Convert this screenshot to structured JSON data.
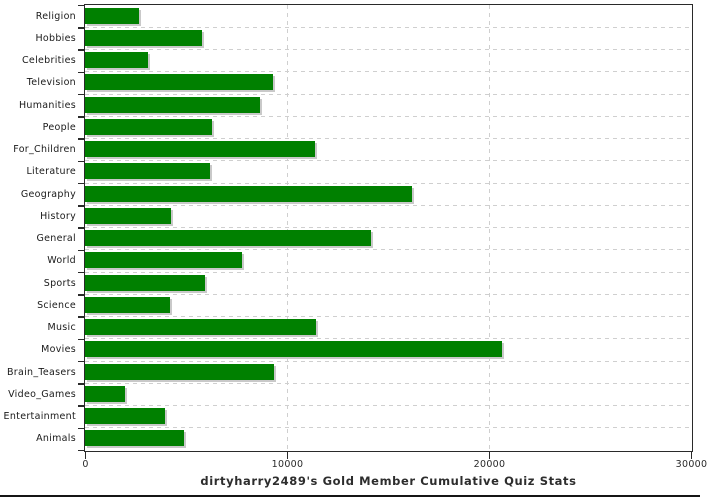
{
  "chart_data": {
    "type": "bar",
    "orientation": "horizontal",
    "title": "dirtyharry2489's Gold Member Cumulative Quiz Stats",
    "categories": [
      "Religion",
      "Hobbies",
      "Celebrities",
      "Television",
      "Humanities",
      "People",
      "For_Children",
      "Literature",
      "Geography",
      "History",
      "General",
      "World",
      "Sports",
      "Science",
      "Music",
      "Movies",
      "Brain_Teasers",
      "Video_Games",
      "Entertainment",
      "Animals"
    ],
    "values": [
      2650,
      5800,
      3100,
      9300,
      8650,
      6275,
      11400,
      6200,
      16200,
      4250,
      14150,
      7750,
      5950,
      4200,
      11450,
      20650,
      9350,
      2000,
      3950,
      4900
    ],
    "xlabel": "",
    "ylabel": "",
    "xlim": [
      0,
      30000
    ],
    "x_ticks": [
      0,
      10000,
      20000,
      30000
    ],
    "x_tick_labels": [
      "0",
      "10000",
      "20000",
      "30000"
    ],
    "grid": "dashed",
    "legend": "none",
    "colors": {
      "bar": "#008000",
      "bar_shadow": "#c9c9c9",
      "gridline": "#cfcfcf",
      "axis": "#2a2a2a",
      "text": "#1a1a1a"
    }
  }
}
